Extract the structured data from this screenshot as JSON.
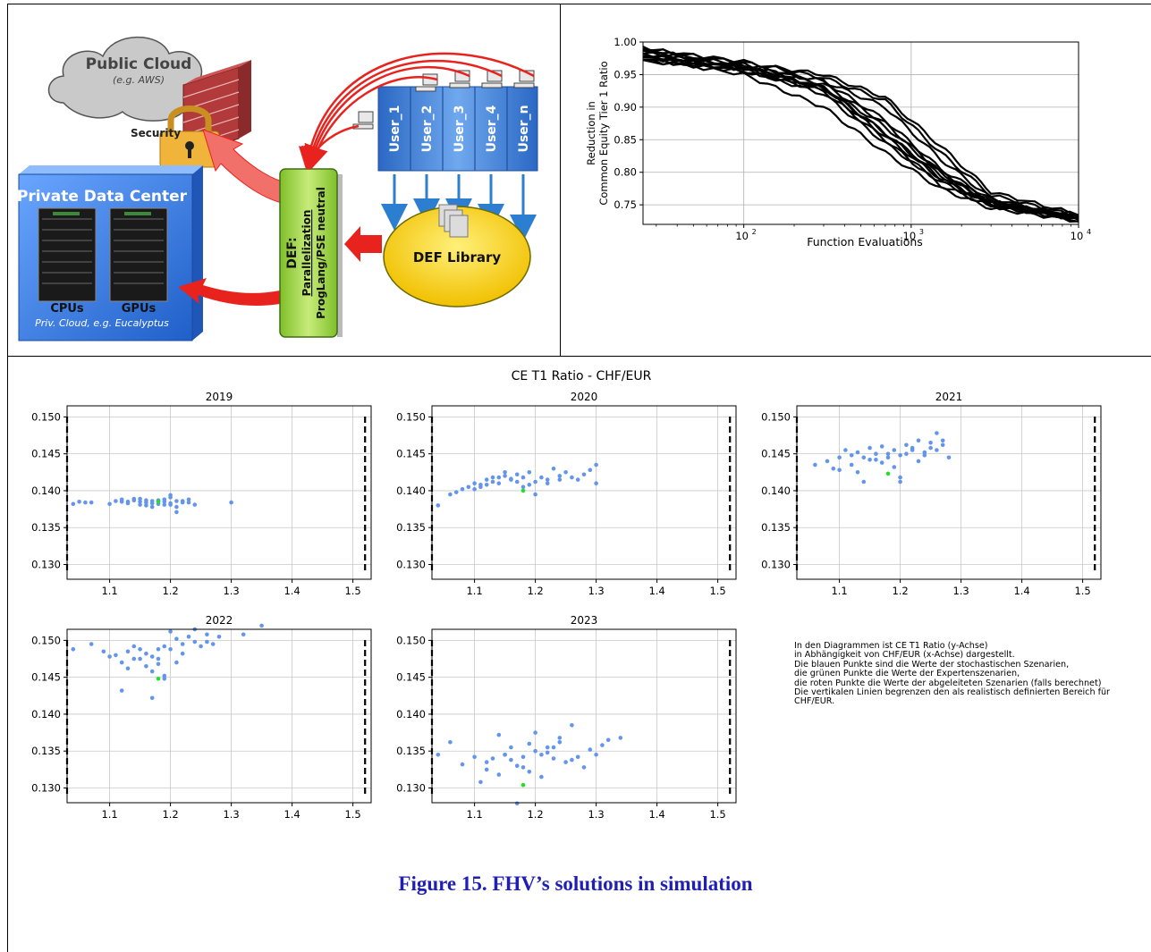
{
  "diagram": {
    "public_cloud": {
      "title": "Public Cloud",
      "subtitle": "(e.g. AWS)"
    },
    "security_label": "Security",
    "private_dc": {
      "title": "Private Data Center",
      "cpu_label": "CPUs",
      "gpu_label": "GPUs",
      "caption": "Priv. Cloud, e.g. Eucalyptus"
    },
    "def_box": {
      "line1": "DEF:",
      "line2": "Parallelization",
      "line3": "ProgLang/PSE neutral"
    },
    "users": [
      "User_1",
      "User_2",
      "User_3",
      "User_4",
      "User_n"
    ],
    "library_label": "DEF Library",
    "colors": {
      "cloud": "#c9c9c9",
      "firewall": "#b23a3a",
      "lock": "#f0b43a",
      "datacenter": "#3f7fe0",
      "def_box": "#a6d84a",
      "users": "#4a8de0",
      "library": "#f2c200",
      "arrows_red": "#e8231e",
      "arrows_blue": "#2c7fd0"
    }
  },
  "convergence_chart": {
    "ylabel_line1": "Reduction in",
    "ylabel_line2": "Common Equity Tier 1 Ratio",
    "xlabel": "Function Evaluations",
    "yticks": [
      "1.00",
      "0.95",
      "0.90",
      "0.85",
      "0.80",
      "0.75"
    ],
    "xticks": [
      "10",
      "10",
      "10"
    ],
    "xtick_exp": [
      "2",
      "3",
      "4"
    ]
  },
  "scatter_panel": {
    "suptitle": "CE T1 Ratio - CHF/EUR",
    "yticks": [
      "0.150",
      "0.145",
      "0.140",
      "0.135",
      "0.130"
    ],
    "xticks": [
      "1.1",
      "1.2",
      "1.3",
      "1.4",
      "1.5"
    ]
  },
  "note_lines": [
    "In den Diagrammen ist CE T1 Ratio (y-Achse)",
    "in Abhängigkeit von CHF/EUR (x-Achse) dargestellt.",
    "Die blauen Punkte sind die Werte der stochastischen Szenarien,",
    "die grünen Punkte die Werte der Expertenszenarien,",
    "die roten Punkte die Werte der abgeleiteten Szenarien (falls berechnet)",
    "Die vertikalen Linien begrenzen den als realistisch definierten Bereich für",
    "CHF/EUR."
  ],
  "caption": "Figure 15. FHV’s solutions in simulation",
  "chart_data": [
    {
      "type": "line",
      "title": "",
      "xlabel": "Function Evaluations",
      "ylabel": "Reduction in Common Equity Tier 1 Ratio",
      "xscale": "log",
      "xlim": [
        25,
        10000
      ],
      "ylim": [
        0.72,
        1.0
      ],
      "grid": true,
      "series": [
        {
          "x": [
            25,
            100,
            300,
            700,
            1500,
            3000,
            10000
          ],
          "y": [
            0.99,
            0.96,
            0.93,
            0.86,
            0.79,
            0.75,
            0.735
          ]
        },
        {
          "x": [
            25,
            100,
            300,
            700,
            1500,
            3000,
            10000
          ],
          "y": [
            0.985,
            0.965,
            0.935,
            0.875,
            0.8,
            0.755,
            0.73
          ]
        },
        {
          "x": [
            25,
            100,
            300,
            700,
            1500,
            3000,
            10000
          ],
          "y": [
            0.98,
            0.955,
            0.925,
            0.85,
            0.78,
            0.748,
            0.728
          ]
        },
        {
          "x": [
            25,
            100,
            300,
            700,
            1500,
            3000,
            10000
          ],
          "y": [
            0.975,
            0.95,
            0.9,
            0.83,
            0.775,
            0.745,
            0.725
          ]
        },
        {
          "x": [
            25,
            100,
            300,
            700,
            1500,
            3000,
            10000
          ],
          "y": [
            0.97,
            0.96,
            0.94,
            0.9,
            0.82,
            0.76,
            0.73
          ]
        },
        {
          "x": [
            25,
            100,
            300,
            700,
            1500,
            3000,
            10000
          ],
          "y": [
            0.99,
            0.97,
            0.945,
            0.91,
            0.83,
            0.765,
            0.732
          ]
        },
        {
          "x": [
            25,
            100,
            300,
            700,
            1500,
            3000,
            10000
          ],
          "y": [
            0.985,
            0.962,
            0.93,
            0.86,
            0.795,
            0.755,
            0.727
          ]
        },
        {
          "x": [
            25,
            100,
            300,
            700,
            1500,
            3000,
            10000
          ],
          "y": [
            0.98,
            0.958,
            0.92,
            0.845,
            0.785,
            0.75,
            0.726
          ]
        },
        {
          "x": [
            25,
            100,
            300,
            700,
            1500,
            3000,
            10000
          ],
          "y": [
            0.975,
            0.965,
            0.94,
            0.88,
            0.805,
            0.758,
            0.729
          ]
        },
        {
          "x": [
            25,
            100,
            300,
            700,
            1500,
            3000,
            10000
          ],
          "y": [
            0.99,
            0.968,
            0.95,
            0.915,
            0.84,
            0.77,
            0.735
          ]
        },
        {
          "x": [
            25,
            100,
            300,
            700,
            1500,
            3000,
            10000
          ],
          "y": [
            0.972,
            0.955,
            0.93,
            0.87,
            0.8,
            0.752,
            0.727
          ]
        },
        {
          "x": [
            25,
            100,
            300,
            700,
            1500,
            3000,
            10000
          ],
          "y": [
            0.982,
            0.96,
            0.928,
            0.855,
            0.79,
            0.752,
            0.73
          ]
        }
      ]
    },
    {
      "type": "scatter",
      "title": "2019",
      "xlim": [
        1.03,
        1.53
      ],
      "ylim": [
        0.128,
        0.1515
      ],
      "vlines": [
        1.03,
        1.52
      ],
      "grid": true,
      "blue_x": [
        1.04,
        1.05,
        1.06,
        1.07,
        1.1,
        1.11,
        1.12,
        1.13,
        1.14,
        1.15,
        1.16,
        1.17,
        1.18,
        1.19,
        1.2,
        1.21,
        1.22,
        1.23,
        1.24,
        1.3,
        1.15,
        1.16,
        1.17,
        1.18,
        1.19,
        1.2,
        1.21,
        1.22,
        1.14,
        1.13,
        1.12,
        1.16,
        1.18,
        1.2,
        1.21,
        1.23,
        1.19,
        1.17,
        1.15,
        1.2
      ],
      "blue_y": [
        0.1382,
        0.1385,
        0.1384,
        0.1384,
        0.1382,
        0.1386,
        0.1388,
        0.1385,
        0.1387,
        0.1389,
        0.1384,
        0.1386,
        0.1382,
        0.1388,
        0.1383,
        0.1386,
        0.1384,
        0.1388,
        0.1381,
        0.1384,
        0.1381,
        0.1387,
        0.1383,
        0.1386,
        0.1385,
        0.1391,
        0.1378,
        0.1386,
        0.1389,
        0.1383,
        0.1385,
        0.138,
        0.1387,
        0.1394,
        0.1371,
        0.1384,
        0.1381,
        0.1378,
        0.1385,
        0.1381
      ],
      "green": [
        [
          1.18,
          0.1385
        ]
      ]
    },
    {
      "type": "scatter",
      "title": "2020",
      "xlim": [
        1.03,
        1.53
      ],
      "ylim": [
        0.128,
        0.1515
      ],
      "vlines": [
        1.03,
        1.52
      ],
      "grid": true,
      "blue_x": [
        1.04,
        1.06,
        1.07,
        1.08,
        1.09,
        1.1,
        1.11,
        1.12,
        1.13,
        1.14,
        1.15,
        1.16,
        1.17,
        1.18,
        1.19,
        1.2,
        1.21,
        1.22,
        1.23,
        1.24,
        1.25,
        1.26,
        1.27,
        1.28,
        1.29,
        1.3,
        1.3,
        1.1,
        1.12,
        1.14,
        1.16,
        1.18,
        1.2,
        1.22,
        1.24,
        1.15,
        1.13,
        1.11,
        1.17,
        1.19
      ],
      "blue_y": [
        0.138,
        0.1395,
        0.1398,
        0.1402,
        0.1405,
        0.141,
        0.1408,
        0.1415,
        0.1412,
        0.1418,
        0.142,
        0.1415,
        0.1422,
        0.1418,
        0.1425,
        0.1412,
        0.1418,
        0.1415,
        0.143,
        0.142,
        0.1425,
        0.1418,
        0.1415,
        0.1422,
        0.1428,
        0.1435,
        0.141,
        0.1402,
        0.1408,
        0.141,
        0.1416,
        0.1405,
        0.1395,
        0.141,
        0.1415,
        0.1425,
        0.1418,
        0.1405,
        0.1412,
        0.1408
      ],
      "green": [
        [
          1.18,
          0.14
        ]
      ]
    },
    {
      "type": "scatter",
      "title": "2021",
      "xlim": [
        1.03,
        1.53
      ],
      "ylim": [
        0.128,
        0.1515
      ],
      "vlines": [
        1.03,
        1.52
      ],
      "grid": true,
      "blue_x": [
        1.06,
        1.08,
        1.09,
        1.1,
        1.11,
        1.12,
        1.13,
        1.14,
        1.15,
        1.16,
        1.17,
        1.18,
        1.19,
        1.2,
        1.21,
        1.22,
        1.23,
        1.24,
        1.25,
        1.26,
        1.27,
        1.28,
        1.1,
        1.12,
        1.14,
        1.16,
        1.18,
        1.2,
        1.22,
        1.24,
        1.26,
        1.13,
        1.15,
        1.17,
        1.19,
        1.21,
        1.23,
        1.25,
        1.27,
        1.2
      ],
      "blue_y": [
        0.1435,
        0.144,
        0.143,
        0.1445,
        0.1455,
        0.1448,
        0.1452,
        0.1445,
        0.1458,
        0.145,
        0.1438,
        0.1445,
        0.1455,
        0.1448,
        0.1462,
        0.1455,
        0.1468,
        0.1452,
        0.1465,
        0.1478,
        0.1462,
        0.1445,
        0.1428,
        0.1435,
        0.1412,
        0.1442,
        0.145,
        0.1418,
        0.1458,
        0.1448,
        0.1455,
        0.1425,
        0.1442,
        0.146,
        0.1432,
        0.145,
        0.144,
        0.1458,
        0.1468,
        0.1412
      ],
      "green": [
        [
          1.18,
          0.1423
        ]
      ]
    },
    {
      "type": "scatter",
      "title": "2022",
      "xlim": [
        1.03,
        1.53
      ],
      "ylim": [
        0.128,
        0.1515
      ],
      "vlines": [
        1.03,
        1.52
      ],
      "grid": true,
      "blue_x": [
        1.04,
        1.07,
        1.09,
        1.1,
        1.11,
        1.12,
        1.13,
        1.14,
        1.15,
        1.16,
        1.17,
        1.18,
        1.19,
        1.2,
        1.21,
        1.22,
        1.23,
        1.24,
        1.25,
        1.26,
        1.27,
        1.28,
        1.32,
        1.35,
        1.12,
        1.14,
        1.16,
        1.17,
        1.18,
        1.19,
        1.2,
        1.21,
        1.22,
        1.24,
        1.26,
        1.18,
        1.17,
        1.15,
        1.13,
        1.19
      ],
      "blue_y": [
        0.1488,
        0.1495,
        0.1485,
        0.1478,
        0.148,
        0.147,
        0.1485,
        0.1492,
        0.1488,
        0.1482,
        0.1478,
        0.1475,
        0.1492,
        0.1488,
        0.1502,
        0.1495,
        0.1505,
        0.1498,
        0.1492,
        0.1508,
        0.1495,
        0.1505,
        0.1508,
        0.152,
        0.1432,
        0.1475,
        0.1465,
        0.1458,
        0.1488,
        0.1452,
        0.1512,
        0.147,
        0.1482,
        0.1515,
        0.1498,
        0.1468,
        0.1422,
        0.1475,
        0.1462,
        0.1448
      ],
      "green": [
        [
          1.18,
          0.1448
        ]
      ]
    },
    {
      "type": "scatter",
      "title": "2023",
      "xlim": [
        1.03,
        1.53
      ],
      "ylim": [
        0.128,
        0.1515
      ],
      "vlines": [
        1.03,
        1.52
      ],
      "grid": true,
      "blue_x": [
        1.04,
        1.06,
        1.08,
        1.1,
        1.11,
        1.12,
        1.13,
        1.14,
        1.15,
        1.16,
        1.17,
        1.18,
        1.19,
        1.2,
        1.21,
        1.22,
        1.23,
        1.24,
        1.25,
        1.26,
        1.27,
        1.28,
        1.29,
        1.3,
        1.31,
        1.32,
        1.34,
        1.12,
        1.14,
        1.16,
        1.18,
        1.2,
        1.22,
        1.24,
        1.26,
        1.15,
        1.17,
        1.19,
        1.21,
        1.23
      ],
      "blue_y": [
        0.1345,
        0.1362,
        0.1332,
        0.1342,
        0.1308,
        0.1335,
        0.134,
        0.1372,
        0.1345,
        0.1355,
        0.133,
        0.1342,
        0.136,
        0.135,
        0.1345,
        0.1355,
        0.134,
        0.1368,
        0.1335,
        0.1385,
        0.1342,
        0.1328,
        0.1352,
        0.1345,
        0.1358,
        0.1365,
        0.1368,
        0.1325,
        0.1318,
        0.1338,
        0.1328,
        0.1375,
        0.1348,
        0.1362,
        0.1338,
        0.1345,
        0.1279,
        0.1322,
        0.1315,
        0.1355
      ],
      "green": [
        [
          1.18,
          0.1304
        ]
      ]
    }
  ]
}
